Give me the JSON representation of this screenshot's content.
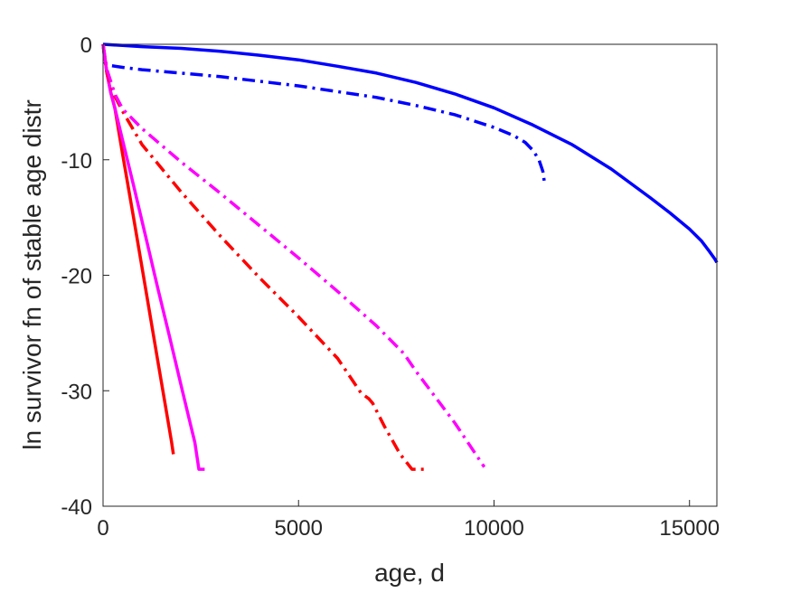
{
  "chart_data": {
    "type": "line",
    "title": "",
    "xlabel": "age, d",
    "ylabel": "ln survivor fn of stable age distr",
    "xlim": [
      0,
      15700
    ],
    "ylim": [
      -40,
      0
    ],
    "xticks": [
      0,
      5000,
      10000,
      15000
    ],
    "xtick_labels": [
      "0",
      "5000",
      "10000",
      "15000"
    ],
    "yticks": [
      0,
      -10,
      -20,
      -30,
      -40
    ],
    "ytick_labels": [
      "0",
      "-10",
      "-20",
      "-30",
      "-40"
    ],
    "grid": false,
    "legend": "none",
    "series": [
      {
        "color": "#0000ff",
        "style": "solid",
        "x": [
          0,
          500,
          1000,
          2000,
          3000,
          4000,
          5000,
          6000,
          7000,
          8000,
          9000,
          10000,
          11000,
          12000,
          13000,
          14000,
          14500,
          15000,
          15300,
          15500,
          15650,
          15700
        ],
        "y": [
          0,
          -0.1,
          -0.2,
          -0.35,
          -0.6,
          -0.95,
          -1.35,
          -1.9,
          -2.5,
          -3.3,
          -4.3,
          -5.5,
          -7.0,
          -8.7,
          -10.8,
          -13.3,
          -14.6,
          -16.0,
          -17.0,
          -17.9,
          -18.6,
          -18.9
        ]
      },
      {
        "color": "#0000ff",
        "style": "dashdot",
        "x": [
          0,
          50,
          200,
          500,
          1000,
          2000,
          3000,
          4000,
          5000,
          6000,
          7000,
          8000,
          9000,
          10000,
          10500,
          10800,
          11000,
          11150,
          11250,
          11300
        ],
        "y": [
          0,
          -1.6,
          -1.85,
          -2.0,
          -2.2,
          -2.5,
          -2.8,
          -3.2,
          -3.6,
          -4.1,
          -4.6,
          -5.3,
          -6.1,
          -7.2,
          -7.9,
          -8.5,
          -9.2,
          -10.0,
          -11.0,
          -12.2
        ]
      },
      {
        "color": "#ff0000",
        "style": "solid",
        "x": [
          0,
          100,
          200,
          300,
          500,
          800,
          1100,
          1400,
          1600,
          1750,
          1800
        ],
        "y": [
          0,
          -2.5,
          -4.2,
          -5.5,
          -9.5,
          -15.4,
          -21.4,
          -27.4,
          -31.4,
          -34.4,
          -35.5
        ]
      },
      {
        "color": "#ff00ff",
        "style": "solid",
        "x": [
          0,
          100,
          200,
          300,
          500,
          800,
          1100,
          1400,
          1700,
          2000,
          2200,
          2350,
          2450,
          2600
        ],
        "y": [
          0,
          -2.5,
          -4.2,
          -5.5,
          -8.3,
          -12.5,
          -16.8,
          -21.1,
          -25.3,
          -29.6,
          -32.4,
          -34.5,
          -36.8,
          -36.8
        ]
      },
      {
        "color": "#ff0000",
        "style": "dashdot",
        "x": [
          0,
          100,
          300,
          500,
          1000,
          2000,
          3000,
          4000,
          5000,
          6000,
          6600,
          6800,
          6900,
          7200,
          7600,
          7900,
          8000,
          8300
        ],
        "y": [
          0,
          -2.5,
          -4.5,
          -5.8,
          -8.7,
          -12.8,
          -16.6,
          -20.2,
          -23.6,
          -27.2,
          -30.2,
          -30.7,
          -31.1,
          -33.1,
          -35.5,
          -36.8,
          -36.8,
          -36.8
        ]
      },
      {
        "color": "#ff00ff",
        "style": "dashdot",
        "x": [
          0,
          100,
          300,
          500,
          1000,
          2000,
          3000,
          4000,
          5000,
          6000,
          7000,
          7700,
          8000,
          9000,
          9750
        ],
        "y": [
          0,
          -2.2,
          -4.3,
          -5.6,
          -7.3,
          -10.2,
          -12.9,
          -15.7,
          -18.5,
          -21.4,
          -24.4,
          -26.8,
          -28.3,
          -32.8,
          -36.6
        ]
      }
    ]
  }
}
